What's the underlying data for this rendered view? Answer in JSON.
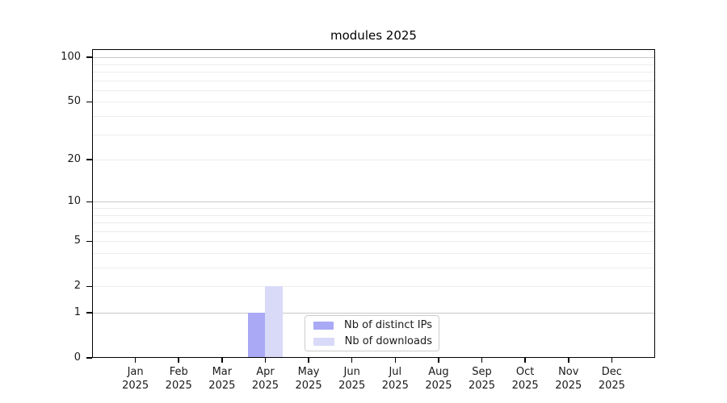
{
  "title": "modules 2025",
  "chart_data": {
    "type": "bar",
    "title": "modules 2025",
    "categories": [
      "Jan 2025",
      "Feb 2025",
      "Mar 2025",
      "Apr 2025",
      "May 2025",
      "Jun 2025",
      "Jul 2025",
      "Aug 2025",
      "Sep 2025",
      "Oct 2025",
      "Nov 2025",
      "Dec 2025"
    ],
    "series": [
      {
        "name": "Nb of distinct IPs",
        "color": "#a9a9f5",
        "values": [
          0,
          0,
          0,
          1,
          0,
          0,
          0,
          0,
          0,
          0,
          0,
          0
        ]
      },
      {
        "name": "Nb of downloads",
        "color": "#d9d9f8",
        "values": [
          0,
          0,
          0,
          2,
          0,
          0,
          0,
          0,
          0,
          0,
          0,
          0
        ]
      }
    ],
    "xlabel": "",
    "ylabel": "",
    "y_axis": {
      "scale": "log10(value+1)",
      "ticks": [
        0,
        1,
        2,
        5,
        10,
        20,
        50,
        100
      ],
      "minor_ticks": [
        3,
        4,
        6,
        7,
        8,
        9,
        30,
        40,
        60,
        70,
        80,
        90
      ],
      "ylim": [
        0,
        114
      ]
    },
    "grid": "horizontal",
    "legend": {
      "position": "lower center"
    },
    "colors": {
      "background": "#ffffff",
      "axis": "#000000",
      "text": "#1a1a1a",
      "gridline_major": "#c8c8c8",
      "gridline_minor": "#ececec",
      "legend_border": "#cccccc"
    }
  }
}
